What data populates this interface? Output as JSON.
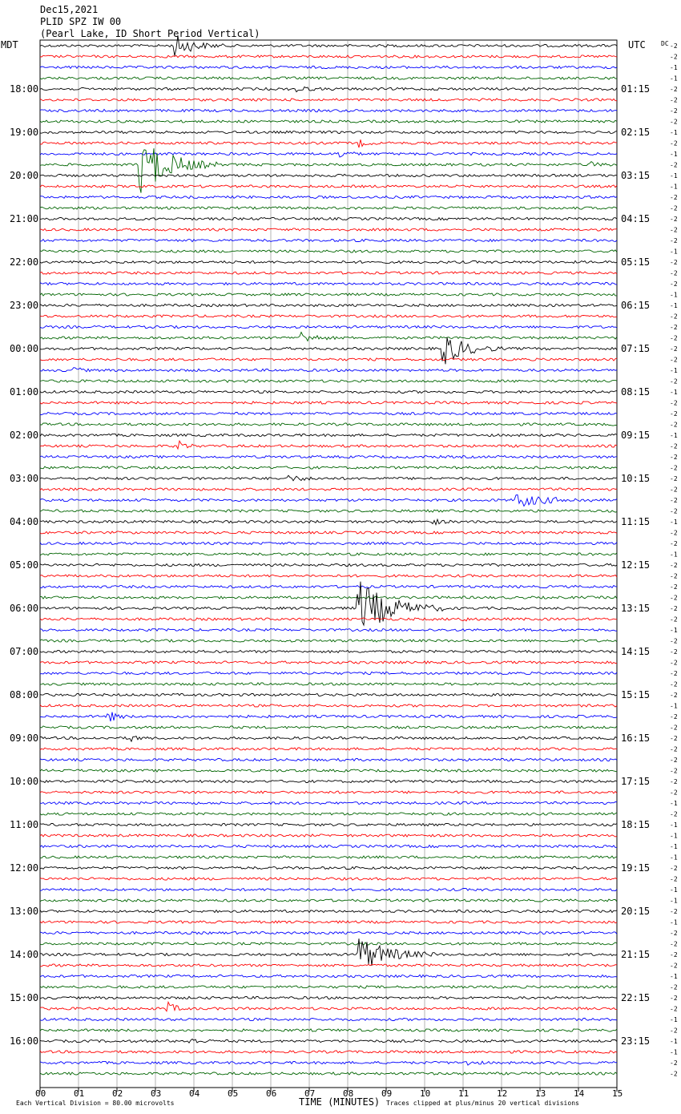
{
  "header": {
    "date": "Dec15,2021",
    "station": "PLID SPZ IW 00",
    "site": "(Pearl Lake, ID Short Period Vertical)"
  },
  "left_tz": "MDT",
  "right_tz": "UTC",
  "dc_label": "DC",
  "footer": {
    "scale": "Each Vertical Division =   80.00 microvolts",
    "xlabel": "TIME (MINUTES)",
    "clip": "Traces clipped at plus/minus 20 vertical divisions"
  },
  "colors": {
    "black": "#000000",
    "red": "#ff0000",
    "blue": "#0000ff",
    "green": "#006400",
    "grid": "#808080"
  },
  "chart_data": {
    "type": "helicorder",
    "xlabel": "TIME (MINUTES)",
    "xlim": [
      0,
      15
    ],
    "x_ticks": [
      "00",
      "01",
      "02",
      "03",
      "04",
      "05",
      "06",
      "07",
      "08",
      "09",
      "10",
      "11",
      "12",
      "13",
      "14",
      "15"
    ],
    "trace_count": 96,
    "color_cycle": [
      "black",
      "red",
      "blue",
      "green"
    ],
    "left_hour_labels": [
      "18:00",
      "19:00",
      "20:00",
      "21:00",
      "22:00",
      "23:00",
      "00:00",
      "01:00",
      "02:00",
      "03:00",
      "04:00",
      "05:00",
      "06:00",
      "07:00",
      "08:00",
      "09:00",
      "10:00",
      "11:00",
      "12:00",
      "13:00",
      "14:00",
      "15:00",
      "16:00"
    ],
    "right_hour_labels": [
      "01:15",
      "02:15",
      "03:15",
      "04:15",
      "05:15",
      "06:15",
      "07:15",
      "08:15",
      "09:15",
      "10:15",
      "11:15",
      "12:15",
      "13:15",
      "14:15",
      "15:15",
      "16:15",
      "17:15",
      "18:15",
      "19:15",
      "20:15",
      "21:15",
      "22:15",
      "23:15"
    ],
    "dc_offsets": [
      "-2",
      "-2",
      "-1",
      "-1",
      "-2",
      "-2",
      "-2",
      "-2",
      "-1",
      "-2",
      "-1",
      "-2",
      "-1",
      "-1",
      "-2",
      "-2",
      "-2",
      "-2",
      "-2",
      "-1",
      "-2",
      "-2",
      "-2",
      "-1",
      "-1",
      "-2",
      "-2",
      "-2",
      "-2",
      "-2",
      "-1",
      "-2",
      "-1",
      "-2",
      "-2",
      "-2",
      "-1",
      "-2",
      "-2",
      "-2",
      "-2",
      "-2",
      "-2",
      "-2",
      "-1",
      "-2",
      "-2",
      "-1",
      "-2",
      "-2",
      "-2",
      "-2",
      "-2",
      "-2",
      "-1",
      "-2",
      "-2",
      "-2",
      "-2",
      "-2",
      "-2",
      "-1",
      "-2",
      "-2",
      "-2",
      "-2",
      "-2",
      "-2",
      "-2",
      "-2",
      "-1",
      "-2",
      "-1",
      "-1",
      "-1",
      "-1",
      "-2",
      "-2",
      "-1",
      "-1",
      "-2",
      "-1",
      "-2",
      "-2",
      "-2",
      "-2",
      "-1",
      "-2",
      "-2",
      "-2",
      "-1",
      "-2",
      "-1",
      "-1",
      "-2",
      "-2"
    ],
    "events": [
      {
        "trace": 0,
        "minute": 3.5,
        "amp": 14,
        "dur": 1.3
      },
      {
        "trace": 4,
        "minute": 6.7,
        "amp": 4,
        "dur": 0.6
      },
      {
        "trace": 9,
        "minute": 8.3,
        "amp": 4,
        "dur": 0.5
      },
      {
        "trace": 10,
        "minute": 7.8,
        "amp": 5,
        "dur": 0.6
      },
      {
        "trace": 11,
        "minute": 2.6,
        "amp": 38,
        "dur": 2.0
      },
      {
        "trace": 11,
        "minute": 14.3,
        "amp": 3,
        "dur": 0.6
      },
      {
        "trace": 27,
        "minute": 6.8,
        "amp": 7,
        "dur": 0.9
      },
      {
        "trace": 28,
        "minute": 10.5,
        "amp": 20,
        "dur": 1.5
      },
      {
        "trace": 30,
        "minute": 0.9,
        "amp": 4,
        "dur": 0.4
      },
      {
        "trace": 37,
        "minute": 3.6,
        "amp": 6,
        "dur": 0.5
      },
      {
        "trace": 40,
        "minute": 6.5,
        "amp": 3,
        "dur": 1.0
      },
      {
        "trace": 42,
        "minute": 12.4,
        "amp": 8,
        "dur": 2.2
      },
      {
        "trace": 44,
        "minute": 10.2,
        "amp": 4,
        "dur": 0.5
      },
      {
        "trace": 52,
        "minute": 8.3,
        "amp": 35,
        "dur": 2.2
      },
      {
        "trace": 53,
        "minute": 10.9,
        "amp": 3,
        "dur": 0.5
      },
      {
        "trace": 62,
        "minute": 1.8,
        "amp": 6,
        "dur": 0.6
      },
      {
        "trace": 64,
        "minute": 2.4,
        "amp": 4,
        "dur": 0.4
      },
      {
        "trace": 84,
        "minute": 8.3,
        "amp": 22,
        "dur": 2.0
      },
      {
        "trace": 89,
        "minute": 3.3,
        "amp": 8,
        "dur": 0.6
      },
      {
        "trace": 92,
        "minute": 3.9,
        "amp": 4,
        "dur": 0.6
      },
      {
        "trace": 94,
        "minute": 11.1,
        "amp": 4,
        "dur": 0.5
      }
    ]
  }
}
